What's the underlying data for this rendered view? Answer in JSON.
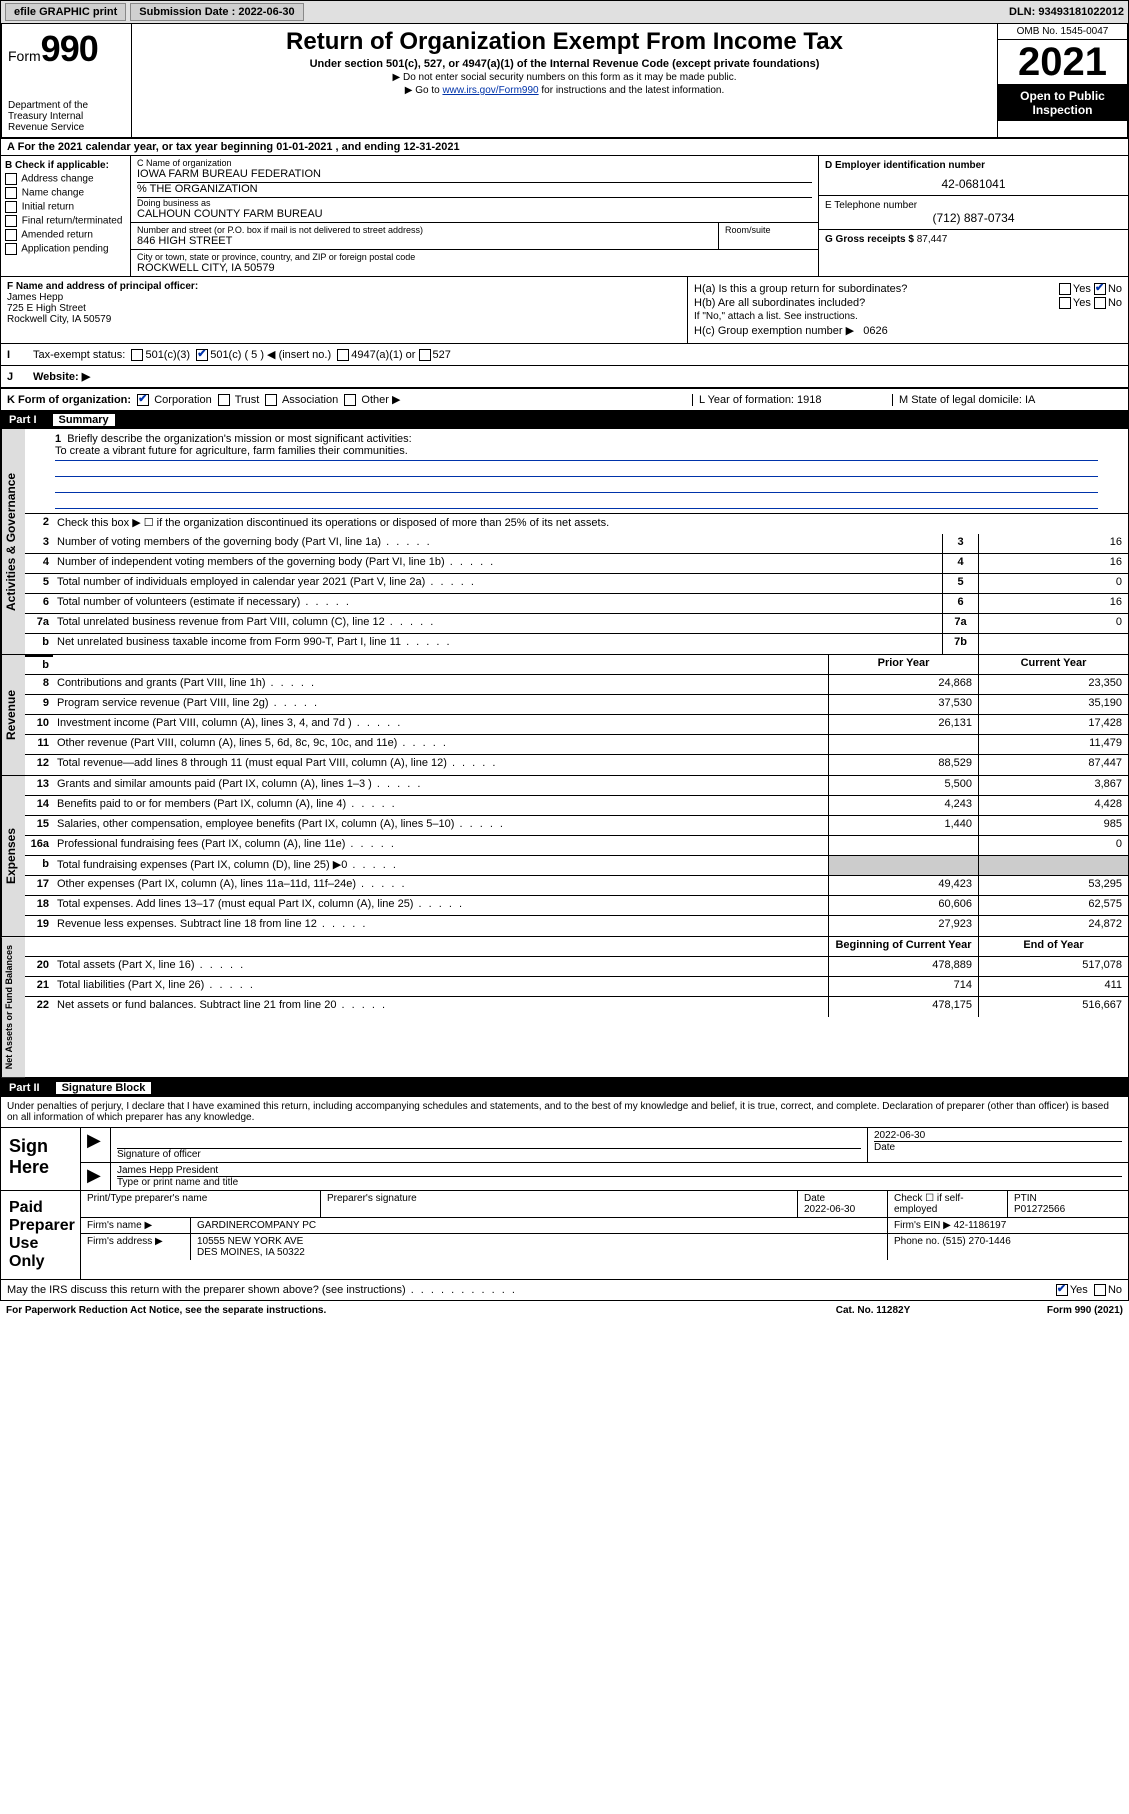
{
  "topbar": {
    "efile": "efile GRAPHIC print",
    "sub_label": "Submission Date : ",
    "sub_date": "2022-06-30",
    "dln_label": "DLN: ",
    "dln": "93493181022012"
  },
  "header": {
    "form_word": "Form",
    "form_num": "990",
    "dept": "Department of the Treasury Internal Revenue Service",
    "title": "Return of Organization Exempt From Income Tax",
    "subtitle": "Under section 501(c), 527, or 4947(a)(1) of the Internal Revenue Code (except private foundations)",
    "note1": "▶ Do not enter social security numbers on this form as it may be made public.",
    "note2": "▶ Go to www.irs.gov/Form990 for instructions and the latest information.",
    "note2_link": "www.irs.gov/Form990",
    "omb": "OMB No. 1545-0047",
    "year": "2021",
    "inspection1": "Open to Public",
    "inspection2": "Inspection"
  },
  "A": {
    "text": "For the 2021 calendar year, or tax year beginning 01-01-2021   , and ending 12-31-2021"
  },
  "B": {
    "hdr": "B Check if applicable:",
    "opts": [
      "Address change",
      "Name change",
      "Initial return",
      "Final return/terminated",
      "Amended return",
      "Application pending"
    ]
  },
  "C": {
    "name_lbl": "C Name of organization",
    "name": "IOWA FARM BUREAU FEDERATION",
    "care": "% THE ORGANIZATION",
    "dba_lbl": "Doing business as",
    "dba": "CALHOUN COUNTY FARM BUREAU",
    "street_lbl": "Number and street (or P.O. box if mail is not delivered to street address)",
    "street": "846 HIGH STREET",
    "room_lbl": "Room/suite",
    "city_lbl": "City or town, state or province, country, and ZIP or foreign postal code",
    "city": "ROCKWELL CITY, IA  50579"
  },
  "D": {
    "lbl": "D Employer identification number",
    "val": "42-0681041"
  },
  "E": {
    "lbl": "E Telephone number",
    "val": "(712) 887-0734"
  },
  "G": {
    "lbl": "G Gross receipts $",
    "val": "87,447"
  },
  "F": {
    "lbl": "F  Name and address of principal officer:",
    "name": "James Hepp",
    "addr1": "725 E High Street",
    "addr2": "Rockwell City, IA  50579"
  },
  "H": {
    "a": "H(a)  Is this a group return for subordinates?",
    "b": "H(b)  Are all subordinates included?",
    "b_note": "If \"No,\" attach a list. See instructions.",
    "c": "H(c)  Group exemption number ▶",
    "c_val": "0626",
    "yes": "Yes",
    "no": "No"
  },
  "I": {
    "lbl": "Tax-exempt status:",
    "o1": "501(c)(3)",
    "o2": "501(c) ( 5 ) ◀ (insert no.)",
    "o3": "4947(a)(1) or",
    "o4": "527"
  },
  "J": {
    "lbl": "Website: ▶"
  },
  "K": {
    "lbl": "K Form of organization:",
    "o1": "Corporation",
    "o2": "Trust",
    "o3": "Association",
    "o4": "Other ▶",
    "L": "L Year of formation: 1918",
    "M": "M State of legal domicile: IA"
  },
  "part1": {
    "label": "Part I",
    "title": "Summary",
    "vtab1": "Activities & Governance",
    "vtab2": "Revenue",
    "vtab3": "Expenses",
    "vtab4": "Net Assets or Fund Balances",
    "l1": "Briefly describe the organization's mission or most significant activities:",
    "l1v": "To create a vibrant future for agriculture, farm families their communities.",
    "l2": "Check this box ▶ ☐  if the organization discontinued its operations or disposed of more than 25% of its net assets.",
    "lines_gov": [
      {
        "n": "3",
        "d": "Number of voting members of the governing body (Part VI, line 1a)",
        "c": "3",
        "v": "16"
      },
      {
        "n": "4",
        "d": "Number of independent voting members of the governing body (Part VI, line 1b)",
        "c": "4",
        "v": "16"
      },
      {
        "n": "5",
        "d": "Total number of individuals employed in calendar year 2021 (Part V, line 2a)",
        "c": "5",
        "v": "0"
      },
      {
        "n": "6",
        "d": "Total number of volunteers (estimate if necessary)",
        "c": "6",
        "v": "16"
      },
      {
        "n": "7a",
        "d": "Total unrelated business revenue from Part VIII, column (C), line 12",
        "c": "7a",
        "v": "0"
      },
      {
        "n": "b",
        "d": "Net unrelated business taxable income from Form 990-T, Part I, line 11",
        "c": "7b",
        "v": ""
      }
    ],
    "colhdr_prior": "Prior Year",
    "colhdr_current": "Current Year",
    "lines_rev": [
      {
        "n": "8",
        "d": "Contributions and grants (Part VIII, line 1h)",
        "p": "24,868",
        "c": "23,350"
      },
      {
        "n": "9",
        "d": "Program service revenue (Part VIII, line 2g)",
        "p": "37,530",
        "c": "35,190"
      },
      {
        "n": "10",
        "d": "Investment income (Part VIII, column (A), lines 3, 4, and 7d )",
        "p": "26,131",
        "c": "17,428"
      },
      {
        "n": "11",
        "d": "Other revenue (Part VIII, column (A), lines 5, 6d, 8c, 9c, 10c, and 11e)",
        "p": "",
        "c": "11,479"
      },
      {
        "n": "12",
        "d": "Total revenue—add lines 8 through 11 (must equal Part VIII, column (A), line 12)",
        "p": "88,529",
        "c": "87,447"
      }
    ],
    "lines_exp": [
      {
        "n": "13",
        "d": "Grants and similar amounts paid (Part IX, column (A), lines 1–3 )",
        "p": "5,500",
        "c": "3,867"
      },
      {
        "n": "14",
        "d": "Benefits paid to or for members (Part IX, column (A), line 4)",
        "p": "4,243",
        "c": "4,428"
      },
      {
        "n": "15",
        "d": "Salaries, other compensation, employee benefits (Part IX, column (A), lines 5–10)",
        "p": "1,440",
        "c": "985"
      },
      {
        "n": "16a",
        "d": "Professional fundraising fees (Part IX, column (A), line 11e)",
        "p": "",
        "c": "0"
      },
      {
        "n": "b",
        "d": "Total fundraising expenses (Part IX, column (D), line 25) ▶0",
        "p": "grey",
        "c": "grey"
      },
      {
        "n": "17",
        "d": "Other expenses (Part IX, column (A), lines 11a–11d, 11f–24e)",
        "p": "49,423",
        "c": "53,295"
      },
      {
        "n": "18",
        "d": "Total expenses. Add lines 13–17 (must equal Part IX, column (A), line 25)",
        "p": "60,606",
        "c": "62,575"
      },
      {
        "n": "19",
        "d": "Revenue less expenses. Subtract line 18 from line 12",
        "p": "27,923",
        "c": "24,872"
      }
    ],
    "colhdr_begin": "Beginning of Current Year",
    "colhdr_end": "End of Year",
    "lines_net": [
      {
        "n": "20",
        "d": "Total assets (Part X, line 16)",
        "p": "478,889",
        "c": "517,078"
      },
      {
        "n": "21",
        "d": "Total liabilities (Part X, line 26)",
        "p": "714",
        "c": "411"
      },
      {
        "n": "22",
        "d": "Net assets or fund balances. Subtract line 21 from line 20",
        "p": "478,175",
        "c": "516,667"
      }
    ]
  },
  "part2": {
    "label": "Part II",
    "title": "Signature Block",
    "decl": "Under penalties of perjury, I declare that I have examined this return, including accompanying schedules and statements, and to the best of my knowledge and belief, it is true, correct, and complete. Declaration of preparer (other than officer) is based on all information of which preparer has any knowledge.",
    "sign_here": "Sign Here",
    "sig_officer": "Signature of officer",
    "sig_date": "2022-06-30",
    "sig_date_lbl": "Date",
    "sig_name": "James Hepp President",
    "sig_name_lbl": "Type or print name and title",
    "paid": "Paid Preparer Use Only",
    "prep_name_lbl": "Print/Type preparer's name",
    "prep_sig_lbl": "Preparer's signature",
    "prep_date_lbl": "Date",
    "prep_date": "2022-06-30",
    "prep_check": "Check ☐ if self-employed",
    "ptin_lbl": "PTIN",
    "ptin": "P01272566",
    "firm_name_lbl": "Firm's name     ▶",
    "firm_name": "GARDINERCOMPANY PC",
    "firm_ein_lbl": "Firm's EIN ▶",
    "firm_ein": "42-1186197",
    "firm_addr_lbl": "Firm's address ▶",
    "firm_addr1": "10555 NEW YORK AVE",
    "firm_addr2": "DES MOINES, IA  50322",
    "phone_lbl": "Phone no.",
    "phone": "(515) 270-1446",
    "may_irs": "May the IRS discuss this return with the preparer shown above? (see instructions)",
    "foot1": "For Paperwork Reduction Act Notice, see the separate instructions.",
    "foot2": "Cat. No. 11282Y",
    "foot3": "Form 990 (2021)"
  }
}
